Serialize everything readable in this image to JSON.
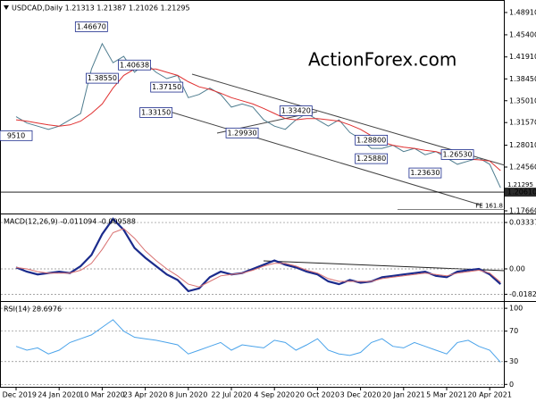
{
  "chart_data": [
    {
      "type": "line",
      "title": "USDCAD,Daily  1.21313 1.21387 1.21026 1.21295",
      "watermark": "ActionForex.com",
      "ylim": [
        1.1738,
        1.5046
      ],
      "yticks": [
        {
          "value": 1.4891,
          "label": "1.48910"
        },
        {
          "value": 1.454,
          "label": "1.45400"
        },
        {
          "value": 1.4191,
          "label": "1.41910"
        },
        {
          "value": 1.3845,
          "label": "1.38450"
        },
        {
          "value": 1.3501,
          "label": "1.35010"
        },
        {
          "value": 1.3157,
          "label": "1.31570"
        },
        {
          "value": 1.2801,
          "label": "1.28010"
        },
        {
          "value": 1.2456,
          "label": "1.24560"
        },
        {
          "value": 1.1766,
          "label": "1.17660"
        }
      ],
      "series": [
        {
          "name": "USDCAD",
          "color": "#4f7d8f",
          "values": [
            1.325,
            1.315,
            1.31,
            1.305,
            1.31,
            1.32,
            1.33,
            1.4,
            1.44,
            1.41,
            1.42,
            1.395,
            1.41,
            1.395,
            1.385,
            1.39,
            1.355,
            1.36,
            1.37,
            1.36,
            1.34,
            1.345,
            1.34,
            1.32,
            1.31,
            1.305,
            1.32,
            1.33,
            1.32,
            1.31,
            1.32,
            1.3,
            1.29,
            1.275,
            1.275,
            1.28,
            1.27,
            1.275,
            1.265,
            1.27,
            1.26,
            1.25,
            1.255,
            1.26,
            1.25,
            1.213
          ]
        },
        {
          "name": "MA",
          "color": "#e03030",
          "values": [
            1.32,
            1.318,
            1.315,
            1.312,
            1.31,
            1.312,
            1.318,
            1.33,
            1.345,
            1.37,
            1.39,
            1.4,
            1.4,
            1.4,
            1.395,
            1.39,
            1.38,
            1.372,
            1.368,
            1.362,
            1.355,
            1.35,
            1.345,
            1.338,
            1.33,
            1.322,
            1.32,
            1.322,
            1.322,
            1.32,
            1.318,
            1.312,
            1.305,
            1.295,
            1.285,
            1.28,
            1.277,
            1.275,
            1.272,
            1.27,
            1.265,
            1.26,
            1.258,
            1.257,
            1.255,
            1.24
          ]
        }
      ],
      "annotations": [
        {
          "label": "9510",
          "value": 1.2951,
          "index": 0
        },
        {
          "label": "1.46670",
          "value": 1.4667,
          "index": 7
        },
        {
          "label": "1.38550",
          "value": 1.3855,
          "index": 8
        },
        {
          "label": "1.40638",
          "value": 1.40638,
          "index": 11
        },
        {
          "label": "1.37150",
          "value": 1.3715,
          "index": 14
        },
        {
          "label": "1.33150",
          "value": 1.3315,
          "index": 13
        },
        {
          "label": "1.29930",
          "value": 1.2993,
          "index": 21
        },
        {
          "label": "1.33420",
          "value": 1.3342,
          "index": 26
        },
        {
          "label": "1.28800",
          "value": 1.288,
          "index": 33
        },
        {
          "label": "1.25880",
          "value": 1.2588,
          "index": 33
        },
        {
          "label": "1.23630",
          "value": 1.2363,
          "index": 38
        },
        {
          "label": "1.26530",
          "value": 1.2653,
          "index": 41
        }
      ],
      "price_labels": [
        {
          "value": 1.21295,
          "label": "1.21295"
        },
        {
          "value": 1.2061,
          "label": "1.20610"
        }
      ],
      "fe_level": {
        "value": 1.1786,
        "label": "FE 161.8"
      }
    },
    {
      "type": "line",
      "title": "MACD(12,26,9) -0.011094 -0.009588",
      "ylim": [
        -0.0225,
        0.0379
      ],
      "yticks": [
        0.03337,
        {
          "value": 0,
          "label": "0.00"
        },
        -0.018262
      ],
      "grid": "dotted",
      "series": [
        {
          "name": "MACD",
          "color": "#1b2b8c",
          "values": [
            0.001,
            -0.002,
            -0.004,
            -0.003,
            -0.002,
            -0.003,
            0.002,
            0.01,
            0.025,
            0.036,
            0.028,
            0.015,
            0.008,
            0.002,
            -0.004,
            -0.008,
            -0.016,
            -0.014,
            -0.006,
            -0.002,
            -0.004,
            -0.003,
            0,
            0.003,
            0.006,
            0.003,
            0.001,
            -0.002,
            -0.004,
            -0.009,
            -0.011,
            -0.008,
            -0.01,
            -0.009,
            -0.006,
            -0.005,
            -0.004,
            -0.003,
            -0.002,
            -0.005,
            -0.006,
            -0.002,
            -0.001,
            0,
            -0.004,
            -0.011
          ]
        },
        {
          "name": "Signal",
          "color": "#d87070",
          "values": [
            0.001,
            0,
            -0.002,
            -0.003,
            -0.003,
            -0.003,
            -0.001,
            0.004,
            0.014,
            0.026,
            0.029,
            0.022,
            0.013,
            0.006,
            0,
            -0.005,
            -0.011,
            -0.013,
            -0.009,
            -0.005,
            -0.004,
            -0.003,
            -0.001,
            0.002,
            0.004,
            0.004,
            0.002,
            -0.001,
            -0.003,
            -0.007,
            -0.009,
            -0.009,
            -0.009,
            -0.009,
            -0.007,
            -0.006,
            -0.005,
            -0.004,
            -0.003,
            -0.004,
            -0.005,
            -0.003,
            -0.002,
            -0.001,
            -0.003,
            -0.0096
          ]
        }
      ]
    },
    {
      "type": "line",
      "title": "RSI(14) 28.6976",
      "ylim": [
        -2,
        106
      ],
      "yticks": [
        100,
        70,
        30,
        0
      ],
      "grid": "dotted",
      "categories": [
        "9 Dec 2019",
        null,
        null,
        null,
        "24 Jan 2020",
        null,
        null,
        null,
        "10 Mar 2020",
        null,
        null,
        null,
        "23 Apr 2020",
        null,
        null,
        null,
        "8 Jun 2020",
        null,
        null,
        null,
        "22 Jul 2020",
        null,
        null,
        null,
        "4 Sep 2020",
        null,
        null,
        null,
        "20 Oct 2020",
        null,
        null,
        null,
        "3 Dec 2020",
        null,
        null,
        null,
        "20 Jan 2021",
        null,
        null,
        null,
        "5 Mar 2021",
        null,
        null,
        null,
        "20 Apr 2021",
        null
      ],
      "series": [
        {
          "name": "RSI",
          "color": "#4aa3ea",
          "values": [
            50,
            45,
            48,
            40,
            45,
            55,
            60,
            65,
            75,
            85,
            70,
            62,
            60,
            58,
            55,
            52,
            40,
            45,
            50,
            55,
            45,
            52,
            50,
            48,
            58,
            55,
            45,
            52,
            60,
            45,
            40,
            38,
            42,
            55,
            60,
            50,
            48,
            55,
            50,
            45,
            40,
            55,
            58,
            50,
            45,
            29
          ]
        }
      ]
    }
  ]
}
